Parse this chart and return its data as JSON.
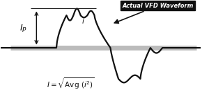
{
  "figure_bg": "#ffffff",
  "baseline_color": "#bbbbbb",
  "baseline_lw": 5,
  "waveform_color": "#111111",
  "waveform_lw": 1.6,
  "annotation_text": "Actual VFD Waveform",
  "annotation_bg": "#111111",
  "annotation_fg": "#ffffff",
  "xlim": [
    0,
    10
  ],
  "ylim": [
    -2.8,
    3.2
  ]
}
